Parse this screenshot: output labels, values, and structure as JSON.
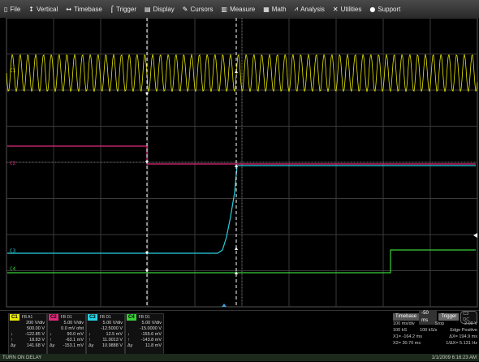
{
  "menu": [
    {
      "icon": "file-icon",
      "glyph": "▯",
      "label": "File"
    },
    {
      "icon": "vertical-icon",
      "glyph": "↕",
      "label": "Vertical"
    },
    {
      "icon": "timebase-icon",
      "glyph": "↔",
      "label": "Timebase"
    },
    {
      "icon": "trigger-icon",
      "glyph": "⌠",
      "label": "Trigger"
    },
    {
      "icon": "display-icon",
      "glyph": "▤",
      "label": "Display"
    },
    {
      "icon": "cursors-icon",
      "glyph": "✎",
      "label": "Cursors"
    },
    {
      "icon": "measure-icon",
      "glyph": "▥",
      "label": "Measure"
    },
    {
      "icon": "math-icon",
      "glyph": "▦",
      "label": "Math"
    },
    {
      "icon": "analysis-icon",
      "glyph": "⩘",
      "label": "Analysis"
    },
    {
      "icon": "utilities-icon",
      "glyph": "✕",
      "label": "Utilities"
    },
    {
      "icon": "support-icon",
      "glyph": "●",
      "label": "Support"
    }
  ],
  "channels": [
    {
      "badge": "C1",
      "color": "#e8e800",
      "tag": "FB A1",
      "vdiv": "200 V/div",
      "offset": "500.00 V",
      "r1": "-122.85 V",
      "r2": "18.83 V",
      "r3": "141.68 V"
    },
    {
      "badge": "C2",
      "color": "#e0287a",
      "tag": "FB D1",
      "vdiv": "5.00 V/div",
      "offset": "0.0 mV ofst",
      "r1": "90.0 mV",
      "r2": "-63.1 mV",
      "r3": "-153.1 mV"
    },
    {
      "badge": "C3",
      "color": "#28d0e0",
      "tag": "FB D1",
      "vdiv": "5.00 V/div",
      "offset": "-12.5000 V",
      "r1": "12.5 mV",
      "r2": "11.0013 V",
      "r3": "10.9888 V"
    },
    {
      "badge": "C4",
      "color": "#38d038",
      "tag": "FB D1",
      "vdiv": "5.00 V/div",
      "offset": "-15.0000 V",
      "r1": "-155.6 mV",
      "r2": "-143.8 mV",
      "r3": "11.8 mV"
    }
  ],
  "row_symbols": [
    "↓",
    "↑",
    "Δy"
  ],
  "timebase": {
    "label": "Timebase",
    "value": "-50 ms",
    "trigger": "Trigger",
    "trigger_mode": "C3 DC",
    "row1_left": "100 ms/div",
    "row1_mid": "Stop",
    "row1_right": "2.00 V",
    "row2_left": "100 kS",
    "row2_mid": "100 kS/s",
    "row2_right": "Edge   Positive",
    "x1_label": "X1=",
    "x1": "-164.2 ms",
    "dx_label": "ΔX=",
    "dx": "194.9 ms",
    "x2_label": "X2=",
    "x2": "30.70 ms",
    "idx_label": "1/ΔX=",
    "idx": "5.131 Hz"
  },
  "status": {
    "left": "TURN ON DELAY",
    "right": "1/1/2009 6:16:23 AM"
  },
  "trace_labels": {
    "c1": "C1",
    "c2": "C2",
    "c3": "C3",
    "c4": "C4"
  },
  "colors": {
    "c1": "#e8e800",
    "c2": "#e0287a",
    "c3": "#28d0e0",
    "c4": "#38d038",
    "grid": "#3a3a3a"
  }
}
